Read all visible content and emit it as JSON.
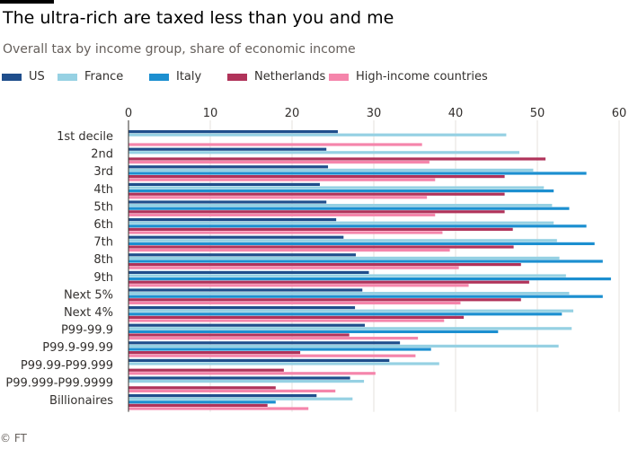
{
  "header": {
    "title": "The ultra-rich are taxed less than you and me",
    "subtitle": "Overall tax by income group, share of economic income"
  },
  "footer": {
    "source": "© FT"
  },
  "colors": {
    "US": "#1f4e8c",
    "France": "#96d1e3",
    "Italy": "#1c8fd0",
    "Netherlands": "#b0335a",
    "High-income countries": "#f585ab",
    "grid": "#e6e2dc",
    "axis": "#33302e"
  },
  "chart_data": {
    "type": "bar",
    "orientation": "horizontal",
    "title": "The ultra-rich are taxed less than you and me",
    "subtitle": "Overall tax by income group, share of economic income",
    "xlabel": "",
    "ylabel": "",
    "xlim": [
      0,
      60
    ],
    "xticks": [
      0,
      10,
      20,
      30,
      40,
      50,
      60
    ],
    "grid": true,
    "legend_position": "top",
    "categories": [
      "1st decile",
      "2nd",
      "3rd",
      "4th",
      "5th",
      "6th",
      "7th",
      "8th",
      "9th",
      "Next 5%",
      "Next 4%",
      "P99-99.9",
      "P99.9-99.99",
      "P99.99-P99.999",
      "P99.999-P99.9999",
      "Billionaires"
    ],
    "series": [
      {
        "name": "US",
        "values": [
          25.6,
          24.2,
          24.4,
          23.4,
          24.2,
          25.4,
          26.3,
          27.8,
          29.4,
          28.6,
          27.7,
          28.9,
          33.2,
          31.9,
          27.1,
          23.0
        ]
      },
      {
        "name": "France",
        "values": [
          46.2,
          47.8,
          49.5,
          50.8,
          51.8,
          52.0,
          52.4,
          52.7,
          53.5,
          53.9,
          54.4,
          54.2,
          52.6,
          38.0,
          28.8,
          27.4
        ]
      },
      {
        "name": "Italy",
        "values": [
          null,
          null,
          56.0,
          52.0,
          53.9,
          56.0,
          57.0,
          58.0,
          59.0,
          58.0,
          53.0,
          45.2,
          37.0,
          null,
          null,
          18.0
        ]
      },
      {
        "name": "Netherlands",
        "values": [
          null,
          51.0,
          46.0,
          46.0,
          46.0,
          47.0,
          47.1,
          48.0,
          49.0,
          48.0,
          41.0,
          27.0,
          21.0,
          19.0,
          18.0,
          17.0
        ]
      },
      {
        "name": "High-income countries",
        "values": [
          35.9,
          36.8,
          37.5,
          36.5,
          37.5,
          38.4,
          39.3,
          40.4,
          41.6,
          40.6,
          38.6,
          35.4,
          35.1,
          30.2,
          25.3,
          22.0
        ]
      }
    ]
  }
}
